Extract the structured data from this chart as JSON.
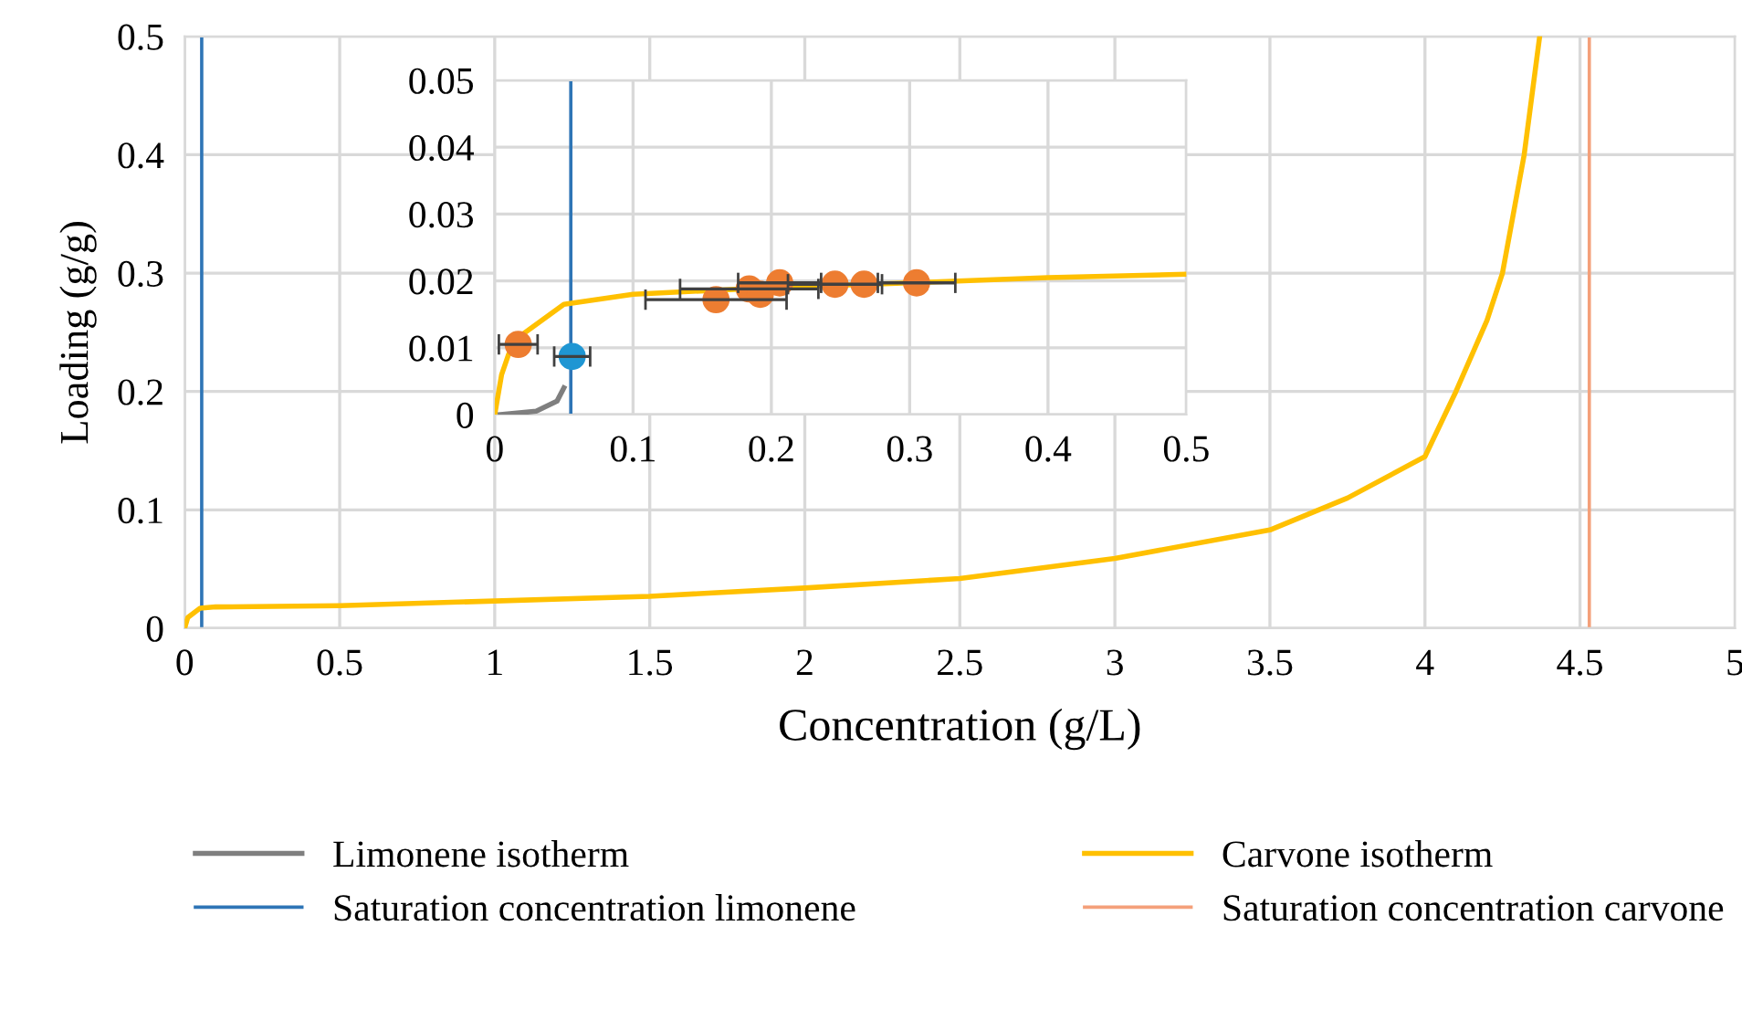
{
  "chart_data": [
    {
      "type": "line",
      "xlabel": "Concentration (g/L)",
      "ylabel": "Loading (g/g)",
      "xlim": [
        0,
        5
      ],
      "ylim": [
        0,
        0.5
      ],
      "xticks": [
        0,
        0.5,
        1,
        1.5,
        2,
        2.5,
        3,
        3.5,
        4,
        4.5,
        5
      ],
      "yticks": [
        0,
        0.1,
        0.2,
        0.3,
        0.4,
        0.5
      ],
      "grid": true,
      "legend": "bottom",
      "series": [
        {
          "name": "Limonene isotherm",
          "color": "#7f7f7f"
        },
        {
          "name": "Carvone isotherm",
          "color": "#ffc000",
          "x": [
            0,
            0.01,
            0.05,
            0.1,
            0.5,
            1,
            1.5,
            2,
            2.5,
            3,
            3.5,
            3.75,
            4,
            4.1,
            4.2,
            4.25,
            4.32,
            4.37
          ],
          "values": [
            0,
            0.009,
            0.017,
            0.018,
            0.019,
            0.023,
            0.027,
            0.034,
            0.042,
            0.059,
            0.083,
            0.11,
            0.145,
            0.2,
            0.26,
            0.3,
            0.4,
            0.5
          ]
        }
      ],
      "ref_lines": [
        {
          "axis": "x",
          "value": 0.055,
          "label": "Saturation concentration limonene",
          "color": "#2e75b6"
        },
        {
          "axis": "x",
          "value": 4.53,
          "label": "Saturation concentration carvone",
          "color": "#f4a07a"
        }
      ]
    },
    {
      "type": "line",
      "xlim": [
        0,
        0.5
      ],
      "ylim": [
        0,
        0.05
      ],
      "xticks": [
        0,
        0.1,
        0.2,
        0.3,
        0.4,
        0.5
      ],
      "yticks": [
        0,
        0.01,
        0.02,
        0.03,
        0.04,
        0.05
      ],
      "grid": true,
      "series": [
        {
          "color": "#7f7f7f",
          "x": [
            0.004,
            0.03,
            0.045,
            0.05
          ],
          "values": [
            0,
            0.0005,
            0.002,
            0.004
          ]
        },
        {
          "color": "#ffc000",
          "x": [
            0,
            0.005,
            0.01,
            0.02,
            0.05,
            0.1,
            0.2,
            0.3,
            0.4,
            0.5
          ],
          "values": [
            0,
            0.006,
            0.009,
            0.012,
            0.0165,
            0.018,
            0.019,
            0.0197,
            0.0205,
            0.021
          ]
        },
        {
          "type": "scatter",
          "marker": "circle",
          "color": "#ed7d31",
          "x": [
            0.017,
            0.16,
            0.184,
            0.192,
            0.206,
            0.246,
            0.267,
            0.305
          ],
          "values": [
            0.0105,
            0.0172,
            0.0188,
            0.018,
            0.0197,
            0.0195,
            0.0195,
            0.0197
          ],
          "xerrors": [
            0.014,
            0.051,
            0.05,
            null,
            0.03,
            0.034,
            null,
            0.028
          ]
        },
        {
          "type": "scatter",
          "marker": "circle",
          "color": "#1f96d3",
          "x": [
            0.056
          ],
          "values": [
            0.0087
          ],
          "xerrors": [
            0.013
          ]
        }
      ],
      "ref_lines": [
        {
          "axis": "x",
          "value": 0.055,
          "color": "#2e75b6"
        }
      ]
    }
  ]
}
